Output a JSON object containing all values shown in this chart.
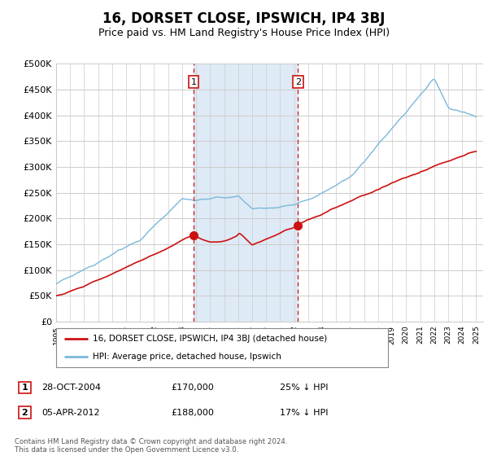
{
  "title": "16, DORSET CLOSE, IPSWICH, IP4 3BJ",
  "subtitle": "Price paid vs. HM Land Registry's House Price Index (HPI)",
  "title_fontsize": 12,
  "subtitle_fontsize": 9,
  "ylabel_ticks": [
    "£0",
    "£50K",
    "£100K",
    "£150K",
    "£200K",
    "£250K",
    "£300K",
    "£350K",
    "£400K",
    "£450K",
    "£500K"
  ],
  "ytick_values": [
    0,
    50000,
    100000,
    150000,
    200000,
    250000,
    300000,
    350000,
    400000,
    450000,
    500000
  ],
  "xlim_start": 1995.0,
  "xlim_end": 2025.5,
  "ylim_min": 0,
  "ylim_max": 500000,
  "sale1_date": 2004.83,
  "sale2_date": 2012.27,
  "sale1_price": 170000,
  "sale2_price": 188000,
  "legend_line1": "16, DORSET CLOSE, IPSWICH, IP4 3BJ (detached house)",
  "legend_line2": "HPI: Average price, detached house, Ipswich",
  "annotation1_num": "1",
  "annotation1_date": "28-OCT-2004",
  "annotation1_price": "£170,000",
  "annotation1_pct": "25% ↓ HPI",
  "annotation2_num": "2",
  "annotation2_date": "05-APR-2012",
  "annotation2_price": "£188,000",
  "annotation2_pct": "17% ↓ HPI",
  "footnote": "Contains HM Land Registry data © Crown copyright and database right 2024.\nThis data is licensed under the Open Government Licence v3.0.",
  "hpi_color": "#7ab8d9",
  "property_color": "#cc1111",
  "vline_color": "#cc1111",
  "shade_color": "#deeaf5",
  "background_color": "#ffffff",
  "grid_color": "#cccccc"
}
